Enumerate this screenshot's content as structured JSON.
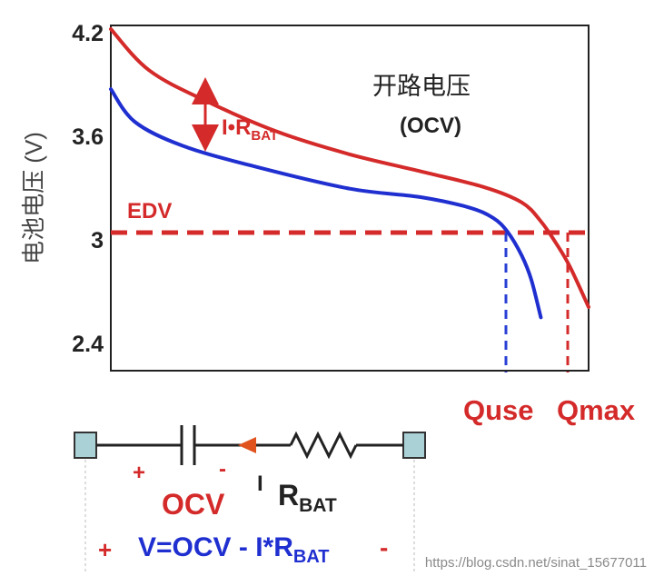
{
  "chart_data": {
    "type": "line",
    "x_axis": {
      "ticks": [],
      "labels_printed": [
        "Quse",
        "Qmax"
      ]
    },
    "y_axis": {
      "label": "电池电压 (V)",
      "ticks": [
        4.2,
        3.6,
        3.0,
        2.4
      ],
      "range": [
        2.2,
        4.2
      ]
    },
    "series": [
      {
        "name": "开路电压 (OCV)",
        "color": "#d42a2a",
        "x": [
          0,
          0.08,
          0.2,
          0.35,
          0.5,
          0.65,
          0.78,
          0.86,
          0.9,
          0.93,
          0.96,
          1.0
        ],
        "y": [
          4.2,
          3.96,
          3.78,
          3.6,
          3.47,
          3.37,
          3.28,
          3.19,
          3.08,
          2.96,
          2.82,
          2.58
        ]
      },
      {
        "name": "V",
        "color": "#1f2fd0",
        "x": [
          0,
          0.05,
          0.15,
          0.3,
          0.5,
          0.65,
          0.75,
          0.8,
          0.83,
          0.86,
          0.88,
          0.9
        ],
        "y": [
          3.85,
          3.66,
          3.52,
          3.4,
          3.27,
          3.22,
          3.16,
          3.1,
          3.02,
          2.88,
          2.74,
          2.52
        ]
      }
    ],
    "reference_line": {
      "label": "EDV",
      "y": 3.0,
      "color": "#d42a2a"
    },
    "markers": [
      {
        "label": "Quse",
        "x": 0.83,
        "color": "#2a3fd6"
      },
      {
        "label": "Qmax",
        "x": 0.96,
        "color": "#d42a2a"
      }
    ],
    "annotations": {
      "ocv_cn": "开路电压",
      "ocv_en": "(OCV)",
      "ir_main": "I•R",
      "ir_sub": "BAT"
    },
    "grid": false
  },
  "circuit": {
    "plus_left": "+",
    "minus_left": "-",
    "ocv_label": "OCV",
    "current_label": "I",
    "r_main": "R",
    "r_sub": "BAT"
  },
  "equation": {
    "plus": "+",
    "body": "V=OCV - I*R",
    "sub": "BAT",
    "minus": "-"
  },
  "watermark": "https://blog.csdn.net/sinat_15677011"
}
